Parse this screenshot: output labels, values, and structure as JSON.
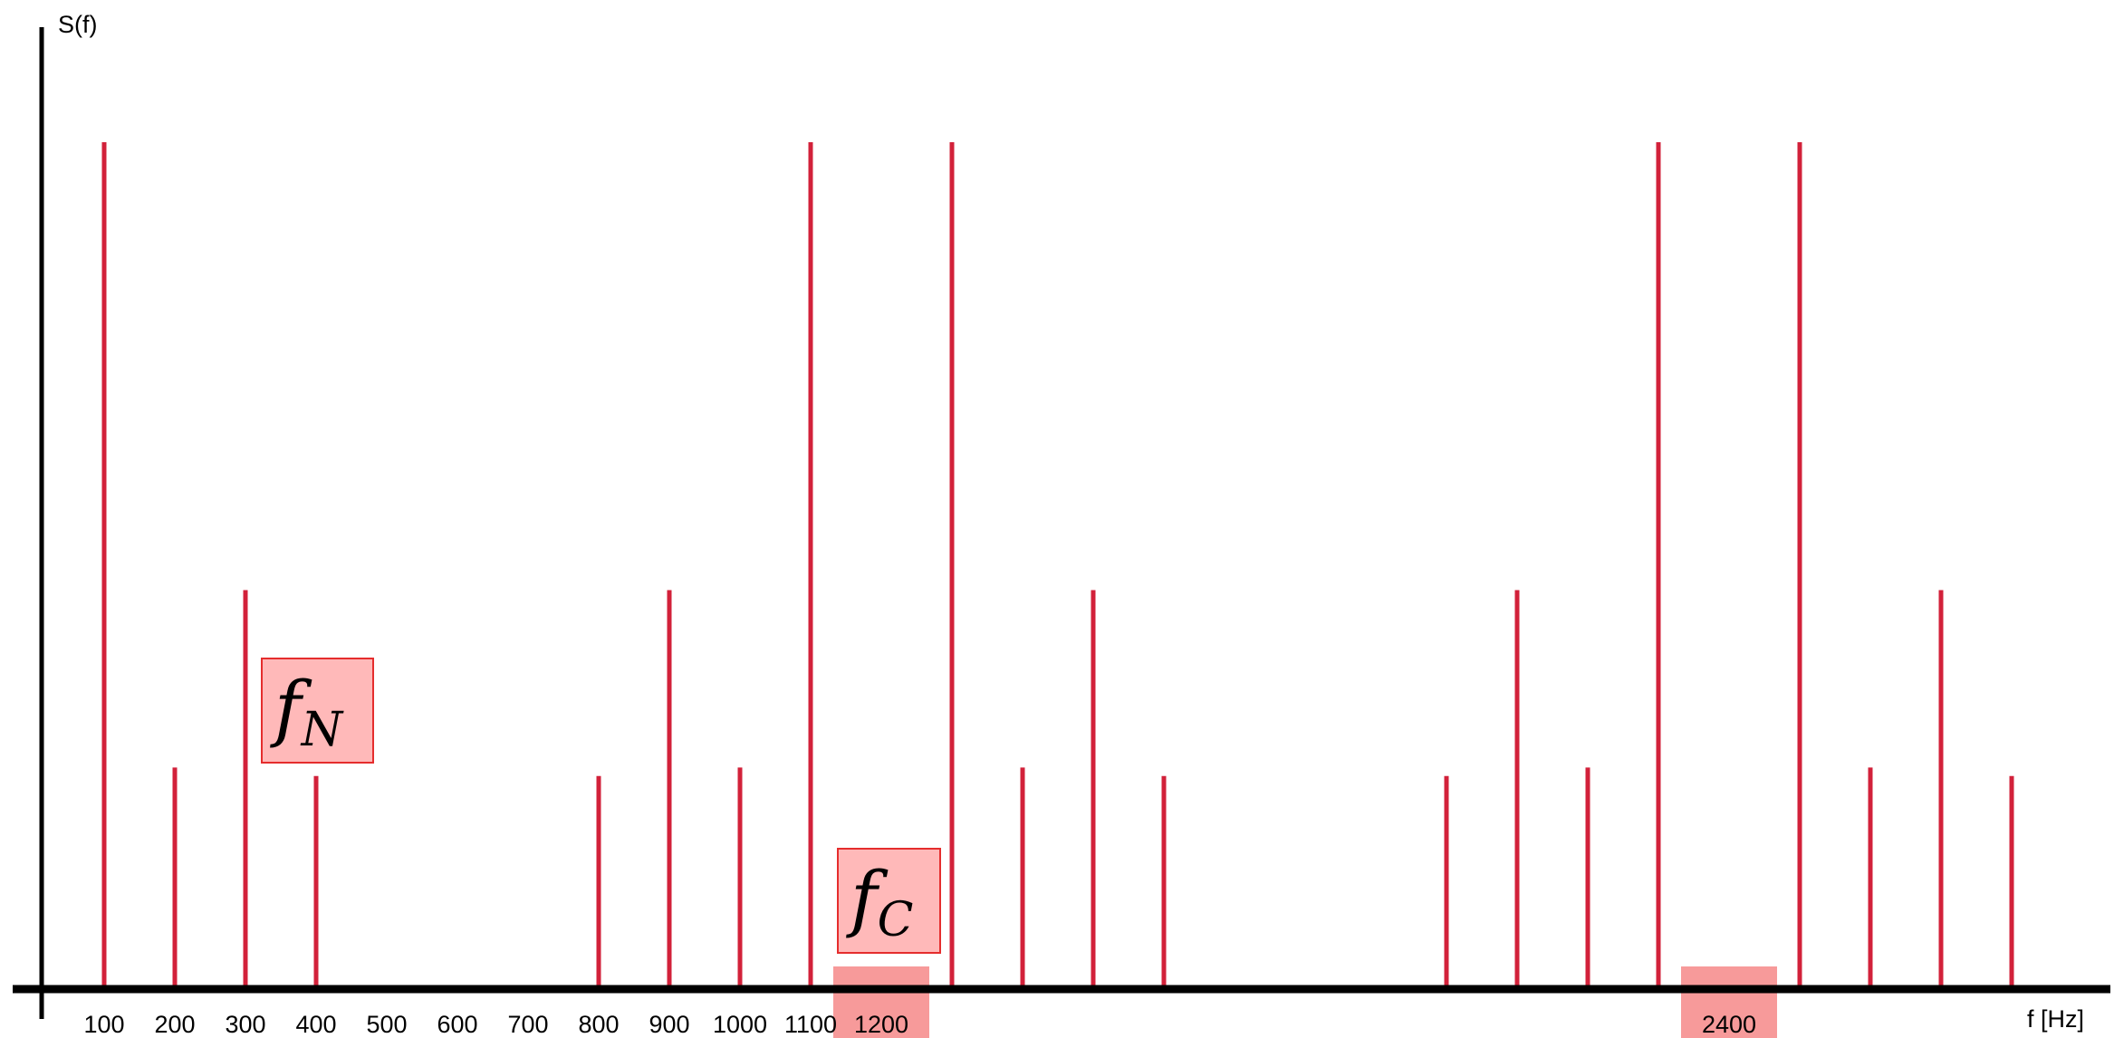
{
  "chart_data": {
    "type": "bar",
    "ylabel": "S(f)",
    "xlabel": "f [Hz]",
    "colors": {
      "line": "#d2213a",
      "axis": "#000000",
      "highlight": "#f79a9a",
      "box_fill": "#ffb9b9",
      "box_border": "#e52d2d"
    },
    "grid": false,
    "legend": "none",
    "tick_labels": [
      "100",
      "200",
      "300",
      "400",
      "500",
      "600",
      "700",
      "800",
      "900",
      "1000",
      "1100",
      "1200",
      "2400"
    ],
    "highlighted_ticks": [
      "1200",
      "2400"
    ],
    "lines": [
      {
        "f": 100,
        "amplitude": 1.0
      },
      {
        "f": 200,
        "amplitude": 0.26
      },
      {
        "f": 300,
        "amplitude": 0.47
      },
      {
        "f": 400,
        "amplitude": 0.25
      },
      {
        "f": 800,
        "amplitude": 0.25
      },
      {
        "f": 900,
        "amplitude": 0.47
      },
      {
        "f": 1000,
        "amplitude": 0.26
      },
      {
        "f": 1100,
        "amplitude": 1.0
      },
      {
        "f": 1300,
        "amplitude": 1.0
      },
      {
        "f": 1400,
        "amplitude": 0.26
      },
      {
        "f": 1500,
        "amplitude": 0.47
      },
      {
        "f": 1600,
        "amplitude": 0.25
      },
      {
        "f": 2000,
        "amplitude": 0.25
      },
      {
        "f": 2100,
        "amplitude": 0.47
      },
      {
        "f": 2200,
        "amplitude": 0.26
      },
      {
        "f": 2300,
        "amplitude": 1.0
      },
      {
        "f": 2500,
        "amplitude": 1.0
      },
      {
        "f": 2600,
        "amplitude": 0.26
      },
      {
        "f": 2700,
        "amplitude": 0.47
      },
      {
        "f": 2800,
        "amplitude": 0.25
      }
    ],
    "annotations": [
      {
        "base": "f",
        "sub": "N",
        "near_f": 400
      },
      {
        "base": "f",
        "sub": "C",
        "near_f": 1200
      }
    ]
  }
}
